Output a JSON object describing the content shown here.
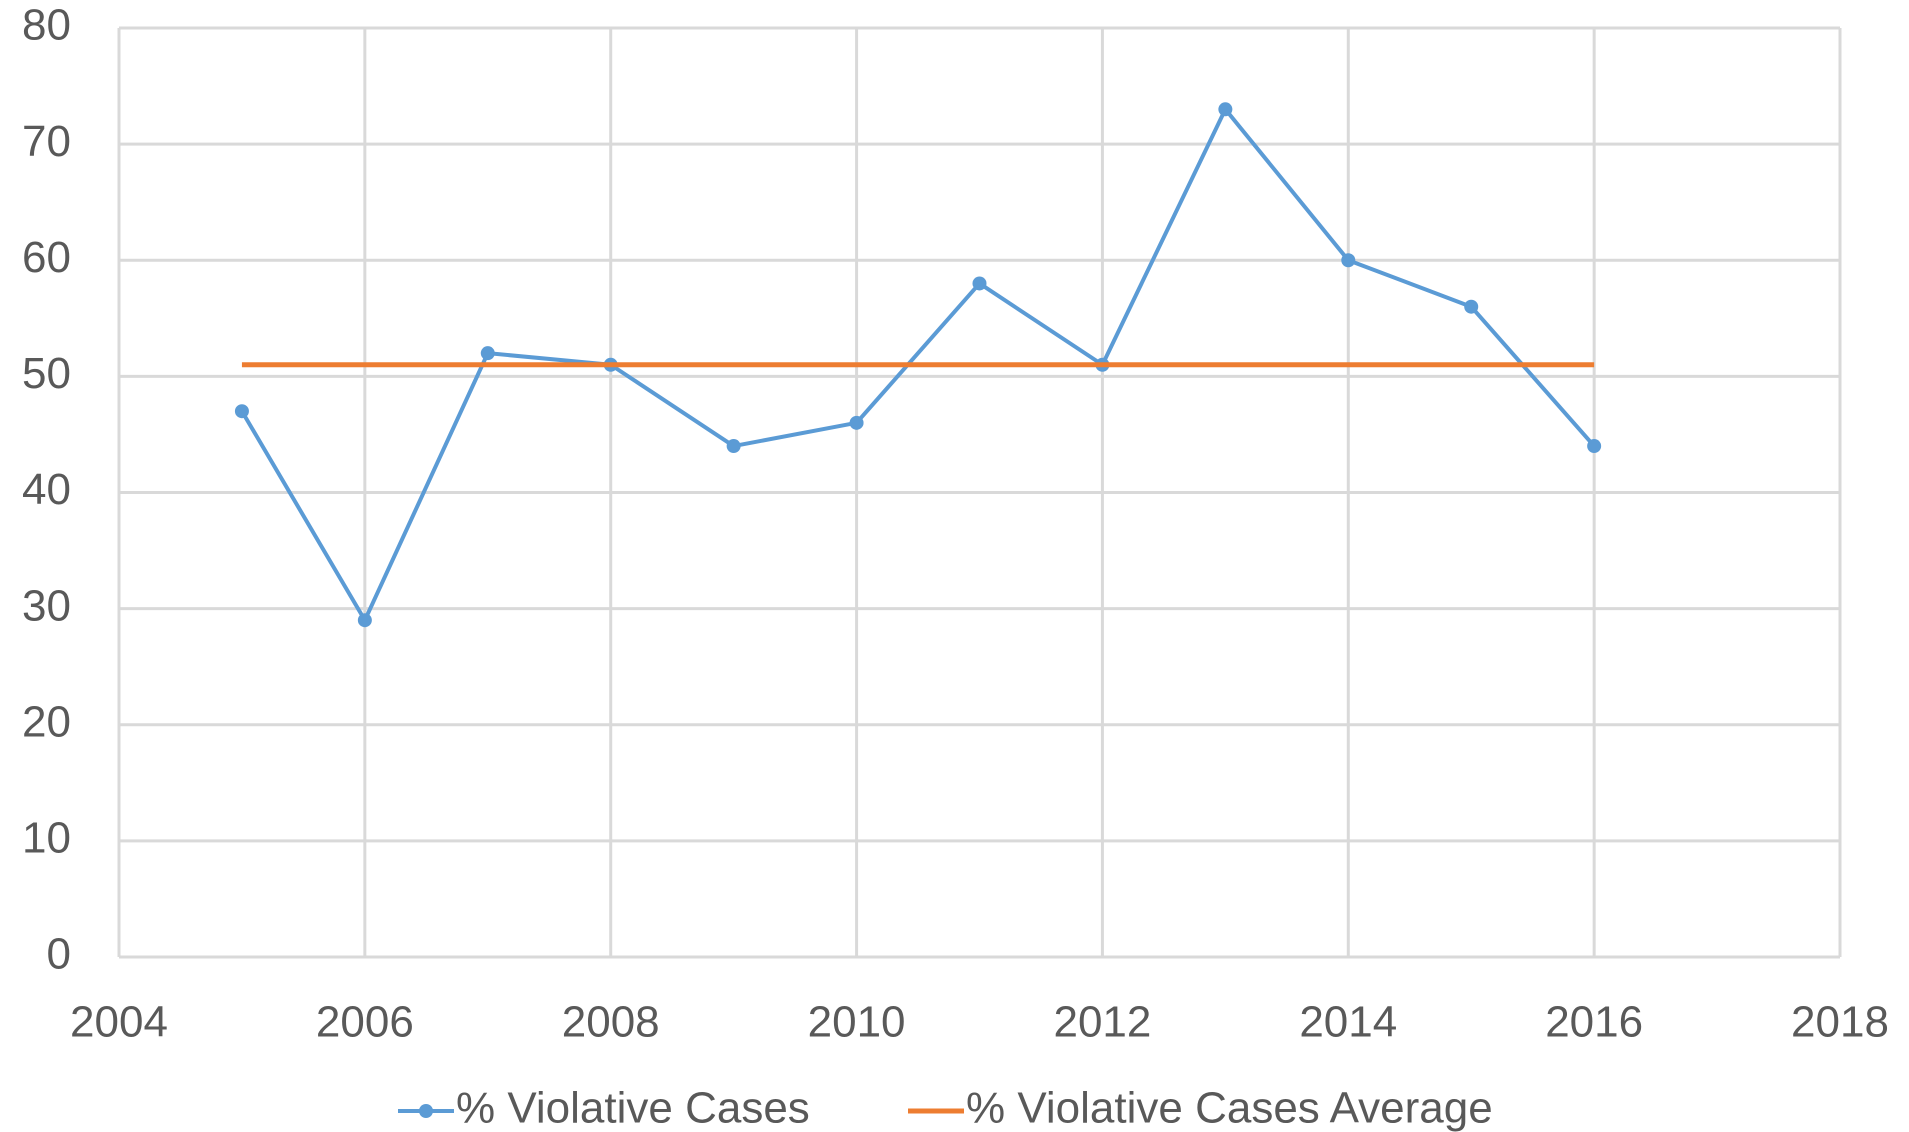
{
  "chart_data": {
    "type": "line",
    "x": [
      2005,
      2006,
      2007,
      2008,
      2009,
      2010,
      2011,
      2012,
      2013,
      2014,
      2015,
      2016
    ],
    "series": [
      {
        "name": "% Violative Cases",
        "color": "#5b9bd5",
        "markers": true,
        "values": [
          47,
          29,
          52,
          51,
          44,
          46,
          58,
          51,
          73,
          60,
          56,
          44
        ]
      },
      {
        "name": "% Violative Cases Average",
        "color": "#ed7d31",
        "markers": false,
        "values": [
          51,
          51,
          51,
          51,
          51,
          51,
          51,
          51,
          51,
          51,
          51,
          51
        ]
      }
    ],
    "xlim": [
      2004,
      2018
    ],
    "xticks": [
      2004,
      2006,
      2008,
      2010,
      2012,
      2014,
      2016,
      2018
    ],
    "ylim": [
      0,
      80
    ],
    "yticks": [
      0,
      10,
      20,
      30,
      40,
      50,
      60,
      70,
      80
    ],
    "grid": true,
    "legend": "bottom"
  }
}
